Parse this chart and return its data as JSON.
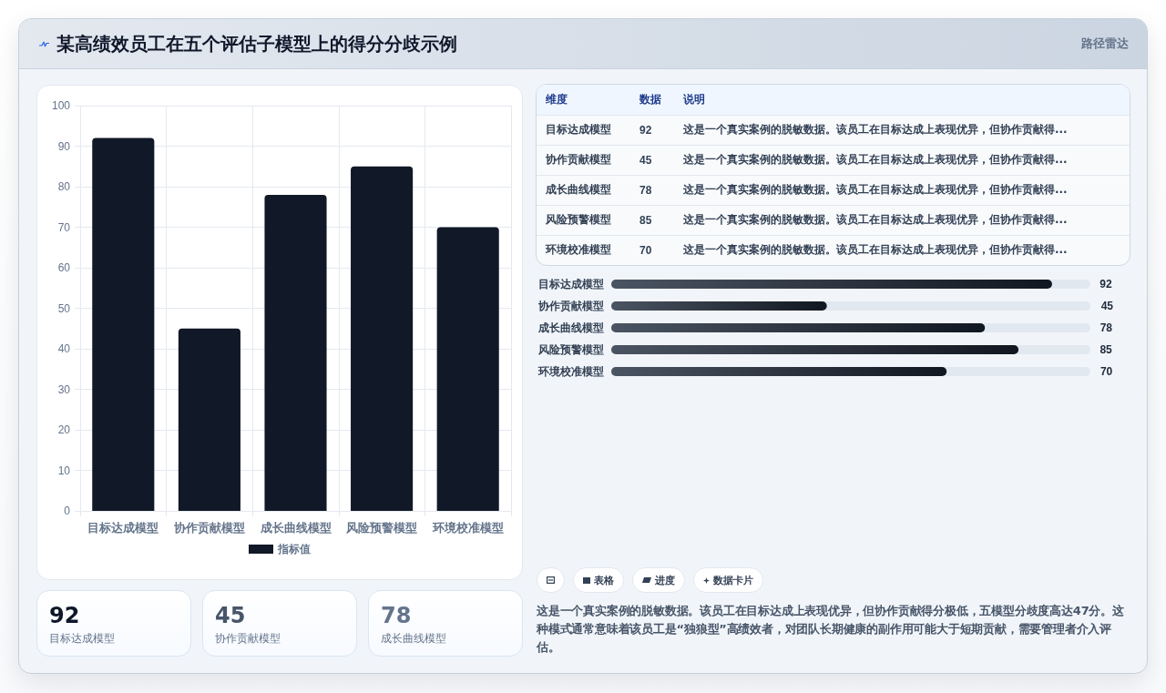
{
  "chart_data": [
    {
      "type": "other",
      "title": "某高绩效员工在五个评估子模型上的得分分歧示例",
      "annotations": [
        "路径雷达"
      ]
    },
    {
      "type": "bar",
      "categories": [
        "目标达成模型",
        "协作贡献模型",
        "成长曲线模型",
        "风险预警模型",
        "环境校准模型"
      ],
      "series": [
        {
          "name": "指标值",
          "color": "#111827",
          "values": [
            92,
            45,
            78,
            85,
            70
          ]
        }
      ],
      "ylim": [
        0,
        100
      ],
      "yticks": [
        0,
        10,
        20,
        30,
        40,
        50,
        60,
        70,
        80,
        90,
        100
      ],
      "grid": true,
      "legend": "bottom"
    },
    {
      "type": "other",
      "ylabel": "维度",
      "categories": [
        "目标达成模型",
        "协作贡献模型",
        "成长曲线模型",
        "风险预警模型",
        "环境校准模型"
      ],
      "series": [
        {
          "name": "数据",
          "values": [
            92,
            45,
            78,
            85,
            70
          ]
        }
      ],
      "data_labels": true,
      "annotations": [
        "说明",
        {
          "text": "这是一个真实案例的脱敏数据。该员工在目标达成上表现优异，但协作贡献得...",
          "x": "目标达成模型"
        },
        {
          "text": "这是一个真实案例的脱敏数据。该员工在目标达成上表现优异，但协作贡献得...",
          "x": "协作贡献模型"
        },
        {
          "text": "这是一个真实案例的脱敏数据。该员工在目标达成上表现优异，但协作贡献得...",
          "x": "成长曲线模型"
        },
        {
          "text": "这是一个真实案例的脱敏数据。该员工在目标达成上表现优异，但协作贡献得...",
          "x": "风险预警模型"
        },
        {
          "text": "这是一个真实案例的脱敏数据。该员工在目标达成上表现优异，但协作贡献得...",
          "x": "环境校准模型"
        }
      ]
    },
    {
      "type": "bar",
      "orientation": "horizontal",
      "categories": [
        "目标达成模型",
        "协作贡献模型",
        "成长曲线模型",
        "风险预警模型",
        "环境校准模型"
      ],
      "values": [
        92,
        45,
        78,
        85,
        70
      ],
      "color": "#1e293b",
      "xlim": [
        0,
        100
      ],
      "tick_labels": "y",
      "data_labels": true
    },
    {
      "type": "other",
      "categories": [
        "目标达成模型",
        "协作贡献模型",
        "成长曲线模型"
      ],
      "values": [
        92,
        45,
        78
      ],
      "data_labels": true
    },
    {
      "type": "other",
      "categories": [
        null,
        "表格",
        "进度",
        "数据卡片"
      ],
      "annotations": [
        "这是一个真实案例的脱敏数据。该员工在目标达成上表现优异，但协作贡献得分极低，五模型分歧度高达47分。这种模式通常意味着该员工是“独狼型”高绩效者，对团队长期健康的副作用可能大于短期贡献，需要管理者介入评估。"
      ]
    }
  ]
}
